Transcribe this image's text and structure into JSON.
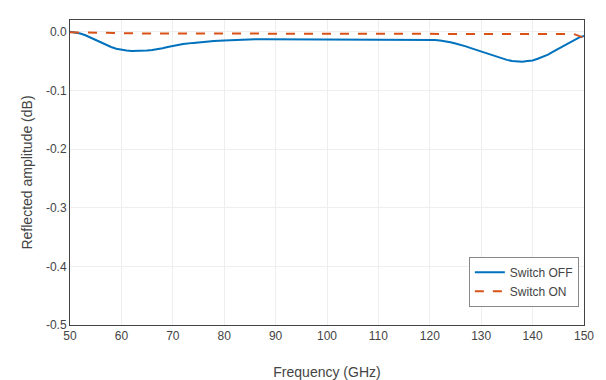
{
  "chart_data": {
    "type": "line",
    "xlabel": "Frequency (GHz)",
    "ylabel": "Reflected amplitude (dB)",
    "xlim": [
      50,
      150
    ],
    "ylim": [
      -0.5,
      0.02
    ],
    "xticks": [
      50,
      60,
      70,
      80,
      90,
      100,
      110,
      120,
      130,
      140,
      150
    ],
    "yticks": [
      {
        "value": 0,
        "label": "0.0"
      },
      -0.1,
      -0.2,
      -0.3,
      -0.4,
      -0.5
    ],
    "grid": true,
    "legend": "lower right",
    "series": [
      {
        "name": "Switch OFF",
        "color": "#0072BD",
        "line_style": "solid",
        "x": [
          50,
          51,
          52,
          53,
          54,
          55,
          56,
          57,
          58,
          59,
          60,
          61,
          62,
          63,
          64,
          65,
          66,
          67,
          68,
          69,
          70,
          72,
          74,
          76,
          78,
          80,
          82,
          84,
          86,
          88,
          90,
          92,
          94,
          96,
          98,
          100,
          102,
          104,
          106,
          108,
          110,
          112,
          114,
          116,
          118,
          120,
          121,
          122,
          123,
          124,
          125,
          126,
          127,
          128,
          129,
          130,
          131,
          132,
          133,
          134,
          135,
          136,
          137,
          138,
          139,
          140,
          141,
          142,
          143,
          144,
          145,
          146,
          147,
          148,
          149,
          150
        ],
        "values": [
          0.0,
          -0.001,
          -0.003,
          -0.006,
          -0.01,
          -0.015,
          -0.019,
          -0.023,
          -0.026,
          -0.029,
          -0.031,
          -0.032,
          -0.033,
          -0.033,
          -0.033,
          -0.032,
          -0.031,
          -0.03,
          -0.028,
          -0.026,
          -0.024,
          -0.021,
          -0.019,
          -0.017,
          -0.016,
          -0.015,
          -0.014,
          -0.014,
          -0.013,
          -0.013,
          -0.013,
          -0.013,
          -0.013,
          -0.013,
          -0.013,
          -0.013,
          -0.013,
          -0.013,
          -0.013,
          -0.013,
          -0.013,
          -0.013,
          -0.013,
          -0.013,
          -0.013,
          -0.013,
          -0.014,
          -0.015,
          -0.016,
          -0.018,
          -0.02,
          -0.022,
          -0.025,
          -0.028,
          -0.031,
          -0.034,
          -0.037,
          -0.04,
          -0.043,
          -0.046,
          -0.048,
          -0.05,
          -0.051,
          -0.051,
          -0.05,
          -0.049,
          -0.046,
          -0.043,
          -0.039,
          -0.034,
          -0.029,
          -0.024,
          -0.019,
          -0.014,
          -0.01,
          -0.007
        ]
      },
      {
        "name": "Switch ON",
        "color": "#D95319",
        "line_style": "dashed",
        "x": [
          50,
          55,
          60,
          65,
          70,
          75,
          80,
          85,
          90,
          95,
          100,
          105,
          110,
          115,
          120,
          125,
          130,
          135,
          140,
          145,
          148,
          150
        ],
        "values": [
          -0.001,
          -0.002,
          -0.003,
          -0.003,
          -0.003,
          -0.003,
          -0.003,
          -0.003,
          -0.003,
          -0.003,
          -0.003,
          -0.003,
          -0.003,
          -0.003,
          -0.003,
          -0.003,
          -0.003,
          -0.003,
          -0.003,
          -0.003,
          -0.004,
          -0.01
        ]
      }
    ]
  }
}
